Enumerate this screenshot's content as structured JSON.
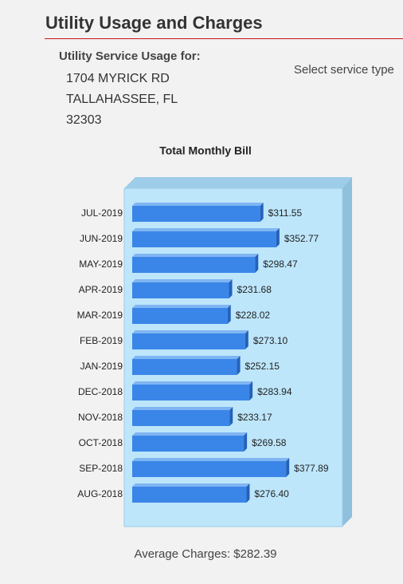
{
  "header": {
    "title": "Utility Usage and Charges"
  },
  "service": {
    "label": "Utility Service Usage for:",
    "address": [
      "1704 MYRICK RD",
      "TALLAHASSEE, FL",
      "32303"
    ],
    "select_prompt": "Select service type"
  },
  "chart_data": {
    "type": "bar",
    "orientation": "horizontal",
    "title": "Total Monthly Bill",
    "color": "#3a86e8",
    "categories": [
      "JUL-2019",
      "JUN-2019",
      "MAY-2019",
      "APR-2019",
      "MAR-2019",
      "FEB-2019",
      "JAN-2019",
      "DEC-2018",
      "NOV-2018",
      "OCT-2018",
      "SEP-2018",
      "AUG-2018"
    ],
    "values": [
      311.55,
      352.77,
      298.47,
      231.68,
      228.02,
      273.1,
      252.15,
      283.94,
      233.17,
      269.58,
      377.89,
      276.4
    ],
    "value_labels": [
      "$311.55",
      "$352.77",
      "$298.47",
      "$231.68",
      "$228.02",
      "$273.10",
      "$252.15",
      "$283.94",
      "$233.17",
      "$269.58",
      "$377.89",
      "$276.40"
    ]
  },
  "footer": {
    "average": "Average Charges: $282.39"
  }
}
